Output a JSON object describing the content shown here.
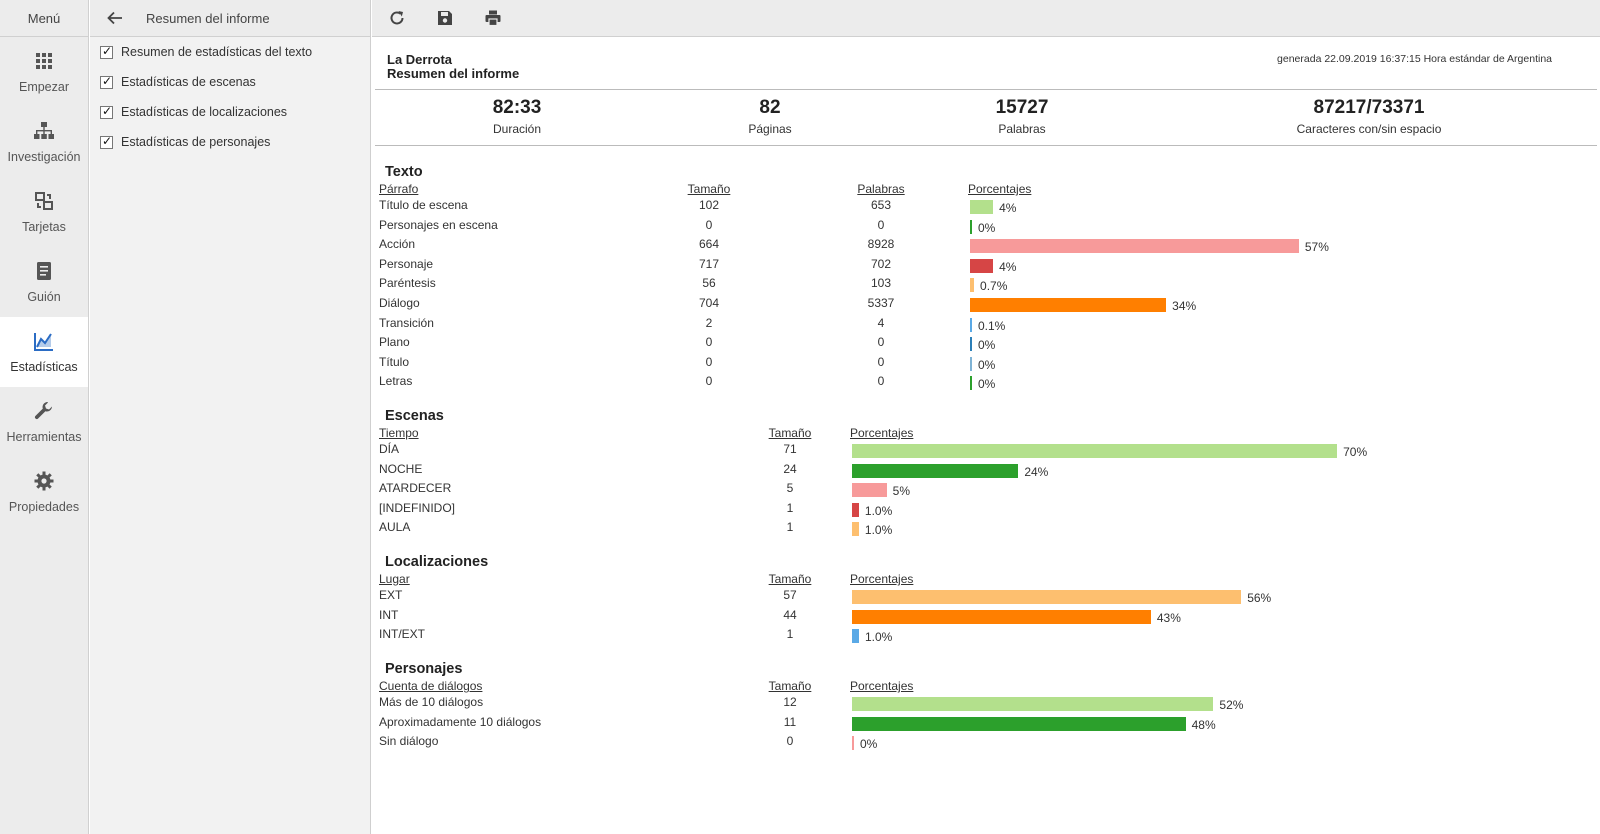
{
  "nav": {
    "menu_label": "Menú",
    "items": [
      {
        "label": "Empezar",
        "icon": "grid-icon"
      },
      {
        "label": "Investigación",
        "icon": "sitemap-icon"
      },
      {
        "label": "Tarjetas",
        "icon": "cards-icon"
      },
      {
        "label": "Guión",
        "icon": "script-icon"
      },
      {
        "label": "Estadísticas",
        "icon": "chart-icon",
        "active": true
      },
      {
        "label": "Herramientas",
        "icon": "wrench-icon"
      },
      {
        "label": "Propiedades",
        "icon": "gear-icon"
      }
    ]
  },
  "options": {
    "title": "Resumen del informe",
    "items": [
      {
        "label": "Resumen de estadísticas del texto",
        "checked": true
      },
      {
        "label": "Estadísticas de escenas",
        "checked": true
      },
      {
        "label": "Estadísticas de localizaciones",
        "checked": true
      },
      {
        "label": "Estadísticas de personajes",
        "checked": true
      }
    ]
  },
  "toolbar": {
    "icons": [
      "refresh-icon",
      "save-icon",
      "print-icon"
    ]
  },
  "report": {
    "title": "La Derrota",
    "subtitle": "Resumen del informe",
    "generated": "generada 22.09.2019 16:37:15 Hora estándar de Argentina",
    "summary": [
      {
        "value": "82:33",
        "caption": "Duración"
      },
      {
        "value": "82",
        "caption": "Páginas"
      },
      {
        "value": "15727",
        "caption": "Palabras"
      },
      {
        "value": "87217/73371",
        "caption": "Caracteres con/sin espacio"
      }
    ],
    "texto": {
      "title": "Texto",
      "headers": {
        "col1": "Párrafo",
        "col2": "Tamaño",
        "col3": "Palabras",
        "col4": "Porcentajes"
      },
      "rows": [
        {
          "name": "Título de escena",
          "size": "102",
          "words": "653",
          "pct": "4%",
          "value": 4,
          "color": "#b3e08c"
        },
        {
          "name": "Personajes en escena",
          "size": "0",
          "words": "0",
          "pct": "0%",
          "value": 0,
          "color": "#2ca02c"
        },
        {
          "name": "Acción",
          "size": "664",
          "words": "8928",
          "pct": "57%",
          "value": 57,
          "color": "#f79a9a"
        },
        {
          "name": "Personaje",
          "size": "717",
          "words": "702",
          "pct": "4%",
          "value": 4,
          "color": "#d64545"
        },
        {
          "name": "Paréntesis",
          "size": "56",
          "words": "103",
          "pct": "0.7%",
          "value": 0.7,
          "color": "#fdbf6f"
        },
        {
          "name": "Diálogo",
          "size": "704",
          "words": "5337",
          "pct": "34%",
          "value": 34,
          "color": "#ff7f00"
        },
        {
          "name": "Transición",
          "size": "2",
          "words": "4",
          "pct": "0.1%",
          "value": 0.1,
          "color": "#5aa9e6"
        },
        {
          "name": "Plano",
          "size": "0",
          "words": "0",
          "pct": "0%",
          "value": 0,
          "color": "#2c7fb8"
        },
        {
          "name": "Título",
          "size": "0",
          "words": "0",
          "pct": "0%",
          "value": 0,
          "color": "#7fb3d5"
        },
        {
          "name": "Letras",
          "size": "0",
          "words": "0",
          "pct": "0%",
          "value": 0,
          "color": "#2ca02c"
        }
      ]
    },
    "escenas": {
      "title": "Escenas",
      "headers": {
        "col1": "Tiempo",
        "col2": "Tamaño",
        "col3": "Porcentajes"
      },
      "rows": [
        {
          "name": "DÍA",
          "size": "71",
          "pct": "70%",
          "value": 70,
          "color": "#b3e08c"
        },
        {
          "name": "NOCHE",
          "size": "24",
          "pct": "24%",
          "value": 24,
          "color": "#2ca02c"
        },
        {
          "name": "ATARDECER",
          "size": "5",
          "pct": "5%",
          "value": 5,
          "color": "#f79a9a"
        },
        {
          "name": "[INDEFINIDO]",
          "size": "1",
          "pct": "1.0%",
          "value": 1,
          "color": "#d64545"
        },
        {
          "name": "AULA",
          "size": "1",
          "pct": "1.0%",
          "value": 1,
          "color": "#fdbf6f"
        }
      ]
    },
    "localizaciones": {
      "title": "Localizaciones",
      "headers": {
        "col1": "Lugar",
        "col2": "Tamaño",
        "col3": "Porcentajes"
      },
      "rows": [
        {
          "name": "EXT",
          "size": "57",
          "pct": "56%",
          "value": 56,
          "color": "#fdbf6f"
        },
        {
          "name": "INT",
          "size": "44",
          "pct": "43%",
          "value": 43,
          "color": "#ff7f00"
        },
        {
          "name": "INT/EXT",
          "size": "1",
          "pct": "1.0%",
          "value": 1,
          "color": "#5aa9e6"
        }
      ]
    },
    "personajes": {
      "title": "Personajes",
      "headers": {
        "col1": "Cuenta de diálogos",
        "col2": "Tamaño",
        "col3": "Porcentajes"
      },
      "rows": [
        {
          "name": "Más de 10 diálogos",
          "size": "12",
          "pct": "52%",
          "value": 52,
          "color": "#b3e08c"
        },
        {
          "name": "Aproximadamente 10 diálogos",
          "size": "11",
          "pct": "48%",
          "value": 48,
          "color": "#2ca02c"
        },
        {
          "name": "Sin diálogo",
          "size": "0",
          "pct": "0%",
          "value": 0,
          "color": "#f79a9a"
        }
      ]
    }
  }
}
